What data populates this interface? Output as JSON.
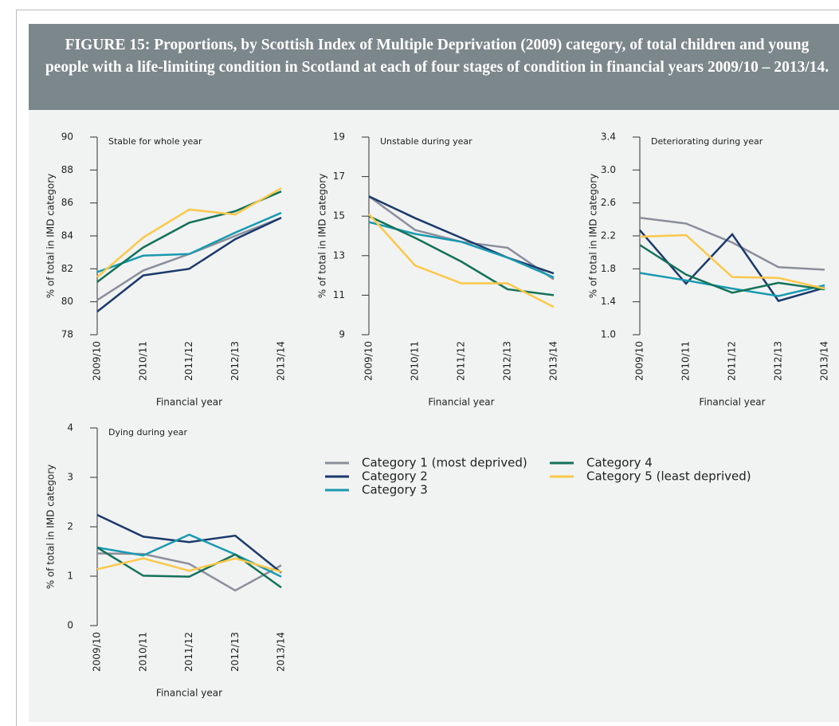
{
  "figure_title": "FIGURE 15: Proportions, by Scottish Index of Multiple Deprivation (2009) category, of total children and young people with a life-limiting condition in Scotland at each of four stages of condition in financial years 2009/10 – 2013/14.",
  "chart_data": [
    {
      "type": "line",
      "title": "Stable for whole year",
      "x_label": "Financial year",
      "y_label": "% of total in IMD category",
      "categories": [
        "2009/10",
        "2010/11",
        "2011/12",
        "2012/13",
        "2013/14"
      ],
      "ylim": [
        78,
        90
      ],
      "yticks": [
        78,
        80,
        82,
        84,
        86,
        88,
        90
      ],
      "series": [
        {
          "name": "Category 1 (most deprived)",
          "color": "#8b8f9c",
          "values": [
            80.1,
            81.9,
            82.9,
            84.0,
            85.1
          ]
        },
        {
          "name": "Category 2",
          "color": "#1b3a6b",
          "values": [
            79.4,
            81.6,
            82.0,
            83.8,
            85.1
          ]
        },
        {
          "name": "Category 3",
          "color": "#1a9ab0",
          "values": [
            81.8,
            82.8,
            82.9,
            84.2,
            85.4
          ]
        },
        {
          "name": "Category 4",
          "color": "#147258",
          "values": [
            81.2,
            83.3,
            84.8,
            85.5,
            86.7
          ]
        },
        {
          "name": "Category 5 (least deprived)",
          "color": "#fcc84a",
          "values": [
            81.5,
            83.9,
            85.6,
            85.3,
            86.9
          ]
        }
      ]
    },
    {
      "type": "line",
      "title": "Unstable during year",
      "x_label": "Financial year",
      "y_label": "% of total in IMD category",
      "categories": [
        "2009/10",
        "2010/11",
        "2011/12",
        "2012/13",
        "2013/14"
      ],
      "ylim": [
        9,
        19
      ],
      "yticks": [
        9,
        11,
        13,
        15,
        17,
        19
      ],
      "series": [
        {
          "name": "Category 1 (most deprived)",
          "color": "#8b8f9c",
          "values": [
            16.0,
            14.3,
            13.7,
            13.4,
            11.8
          ]
        },
        {
          "name": "Category 2",
          "color": "#1b3a6b",
          "values": [
            16.0,
            14.9,
            13.9,
            12.9,
            12.1
          ]
        },
        {
          "name": "Category 3",
          "color": "#1a9ab0",
          "values": [
            14.7,
            14.1,
            13.7,
            12.9,
            11.9
          ]
        },
        {
          "name": "Category 4",
          "color": "#147258",
          "values": [
            15.0,
            13.9,
            12.7,
            11.3,
            11.0
          ]
        },
        {
          "name": "Category 5 (least deprived)",
          "color": "#fcc84a",
          "values": [
            15.1,
            12.5,
            11.6,
            11.6,
            10.4
          ]
        }
      ]
    },
    {
      "type": "line",
      "title": "Deteriorating during year",
      "x_label": "Financial year",
      "y_label": "% of total in IMD category",
      "categories": [
        "2009/10",
        "2010/11",
        "2011/12",
        "2012/13",
        "2013/14"
      ],
      "ylim": [
        1.0,
        3.4
      ],
      "yticks": [
        {
          "value": 1,
          "label": "1.0"
        },
        1.4,
        1.8,
        2.2,
        2.6,
        {
          "value": 3,
          "label": "3.0"
        },
        3.4
      ],
      "series": [
        {
          "name": "Category 1 (most deprived)",
          "color": "#8b8f9c",
          "values": [
            2.42,
            2.35,
            2.12,
            1.82,
            1.79
          ]
        },
        {
          "name": "Category 2",
          "color": "#1b3a6b",
          "values": [
            2.27,
            1.62,
            2.22,
            1.41,
            1.57
          ]
        },
        {
          "name": "Category 3",
          "color": "#1a9ab0",
          "values": [
            1.75,
            1.66,
            1.56,
            1.47,
            1.6
          ]
        },
        {
          "name": "Category 4",
          "color": "#147258",
          "values": [
            2.09,
            1.73,
            1.51,
            1.63,
            1.55
          ]
        },
        {
          "name": "Category 5 (least deprived)",
          "color": "#fcc84a",
          "values": [
            2.19,
            2.21,
            1.7,
            1.69,
            1.56
          ]
        }
      ]
    },
    {
      "type": "line",
      "title": "Dying during year",
      "x_label": "Financial year",
      "y_label": "% of total in IMD category",
      "categories": [
        "2009/10",
        "2010/11",
        "2011/12",
        "2012/13",
        "2013/14"
      ],
      "ylim": [
        0,
        4
      ],
      "yticks": [
        0,
        1,
        2,
        3,
        4
      ],
      "series": [
        {
          "name": "Category 1 (most deprived)",
          "color": "#8b8f9c",
          "values": [
            1.46,
            1.45,
            1.25,
            0.71,
            1.22
          ]
        },
        {
          "name": "Category 2",
          "color": "#1b3a6b",
          "values": [
            2.24,
            1.8,
            1.69,
            1.82,
            1.07
          ]
        },
        {
          "name": "Category 3",
          "color": "#1a9ab0",
          "values": [
            1.58,
            1.42,
            1.84,
            1.44,
            0.99
          ]
        },
        {
          "name": "Category 4",
          "color": "#147258",
          "values": [
            1.58,
            1.01,
            0.99,
            1.44,
            0.77
          ]
        },
        {
          "name": "Category 5 (least deprived)",
          "color": "#fcc84a",
          "values": [
            1.14,
            1.36,
            1.11,
            1.36,
            1.09
          ]
        }
      ]
    }
  ]
}
